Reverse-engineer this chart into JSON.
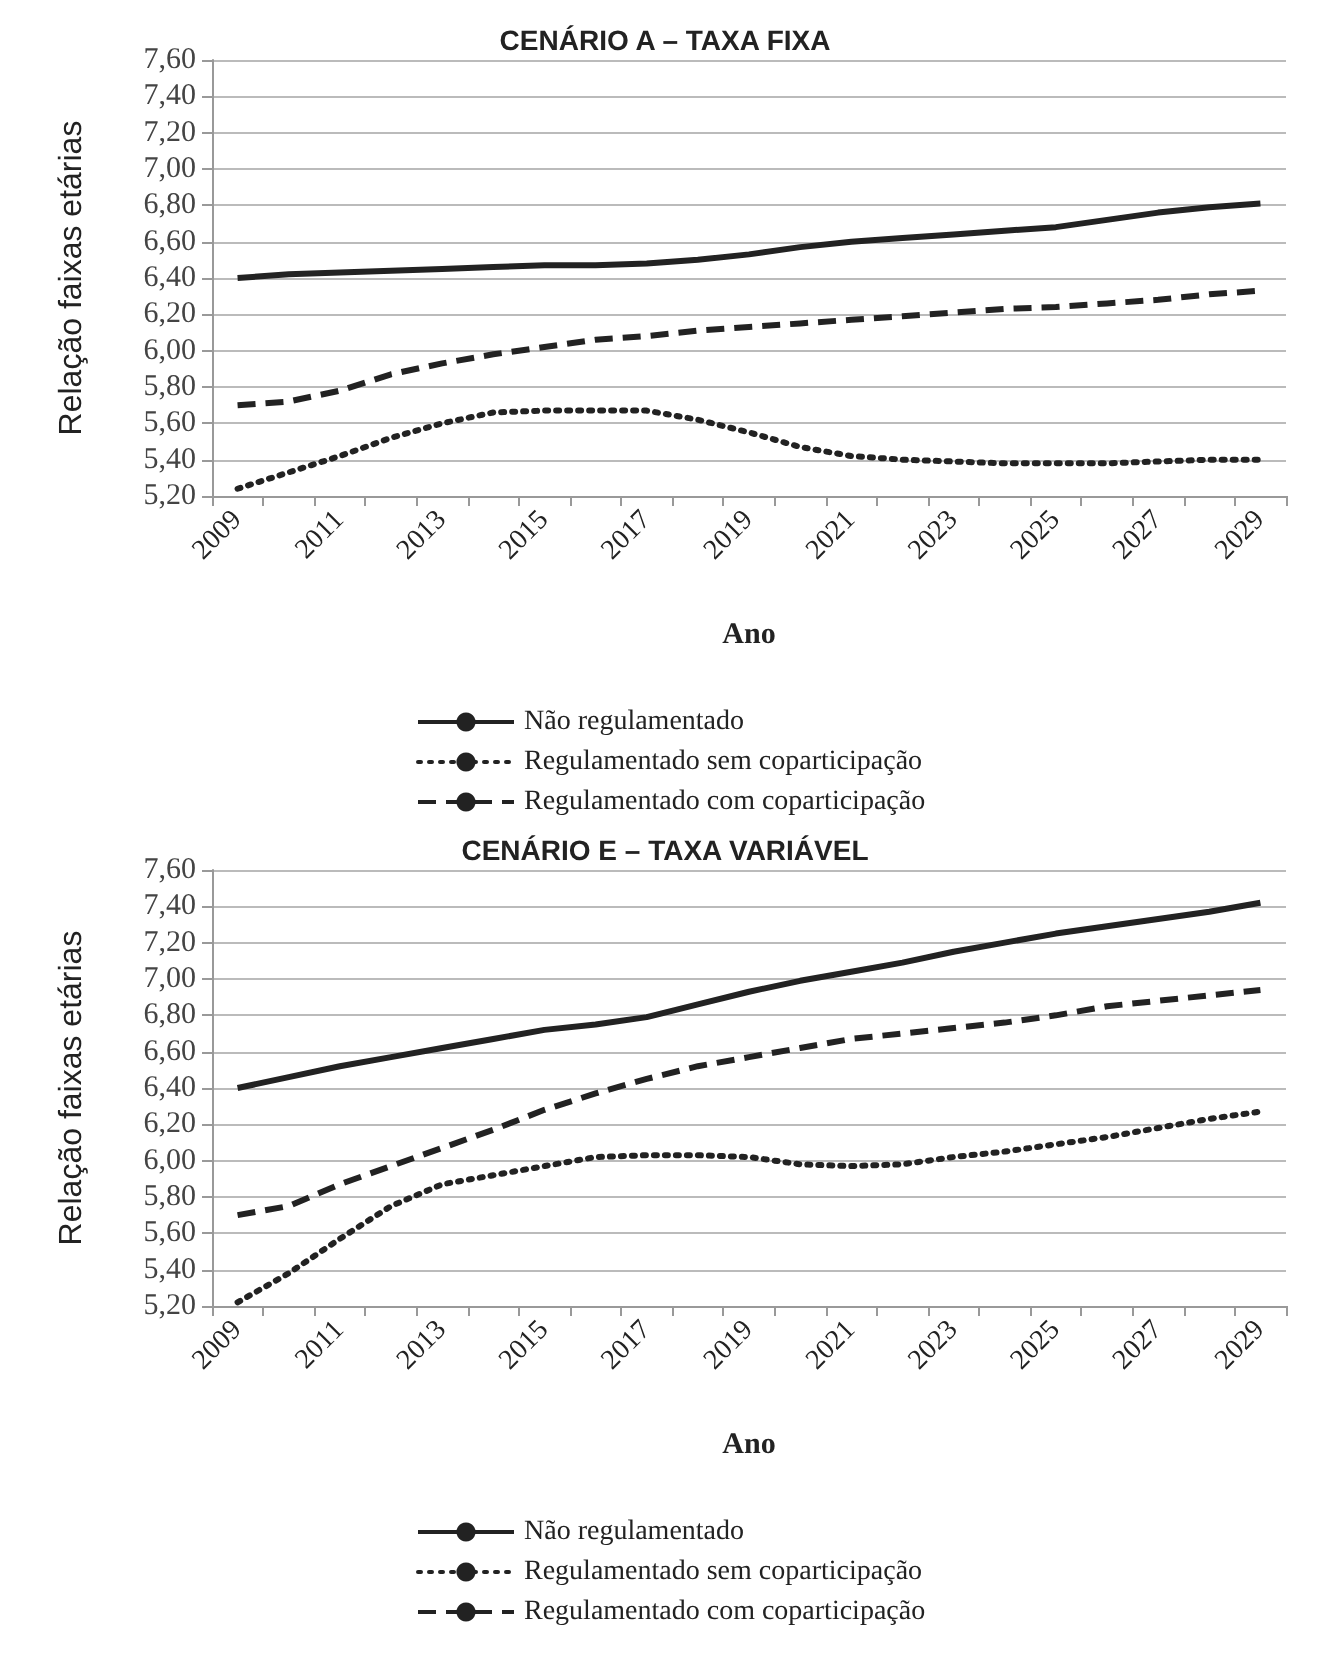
{
  "chart_data": [
    {
      "type": "line",
      "title": "CENÁRIO A – TAXA FIXA",
      "xlabel": "Ano",
      "ylabel": "Relação faixas etárias",
      "categories": [
        "2009",
        null,
        "2011",
        null,
        "2013",
        null,
        "2015",
        null,
        "2017",
        null,
        "2019",
        null,
        "2021",
        null,
        "2023",
        null,
        "2025",
        null,
        "2027",
        null,
        "2029"
      ],
      "series": [
        {
          "name": "Não regulamentado",
          "color": "#222222",
          "line_style": "solid",
          "values": [
            6.4,
            6.42,
            6.43,
            6.44,
            6.45,
            6.46,
            6.47,
            6.47,
            6.48,
            6.5,
            6.53,
            6.57,
            6.6,
            6.62,
            6.64,
            6.66,
            6.68,
            6.72,
            6.76,
            6.79,
            6.81
          ]
        },
        {
          "name": "Regulamentado sem coparticipação",
          "color": "#222222",
          "line_style": "dotted",
          "values": [
            5.24,
            5.33,
            5.42,
            5.52,
            5.6,
            5.66,
            5.67,
            5.67,
            5.67,
            5.62,
            5.55,
            5.47,
            5.42,
            5.4,
            5.39,
            5.38,
            5.38,
            5.38,
            5.39,
            5.4,
            5.4
          ]
        },
        {
          "name": "Regulamentado com coparticipação",
          "color": "#222222",
          "line_style": "dashed",
          "values": [
            5.7,
            5.72,
            5.78,
            5.87,
            5.93,
            5.98,
            6.02,
            6.06,
            6.08,
            6.11,
            6.13,
            6.15,
            6.17,
            6.19,
            6.21,
            6.23,
            6.24,
            6.26,
            6.28,
            6.31,
            6.33
          ]
        }
      ],
      "ylim": [
        5.2,
        7.6
      ],
      "yticks": [
        {
          "value": 5.2,
          "label": "5,20"
        },
        {
          "value": 5.4,
          "label": "5,40"
        },
        {
          "value": 5.6,
          "label": "5,60"
        },
        {
          "value": 5.8,
          "label": "5,80"
        },
        {
          "value": 6.0,
          "label": "6,00"
        },
        {
          "value": 6.2,
          "label": "6,20"
        },
        {
          "value": 6.4,
          "label": "6,40"
        },
        {
          "value": 6.6,
          "label": "6,60"
        },
        {
          "value": 6.8,
          "label": "6,80"
        },
        {
          "value": 7.0,
          "label": "7,00"
        },
        {
          "value": 7.2,
          "label": "7,20"
        },
        {
          "value": 7.4,
          "label": "7,40"
        },
        {
          "value": 7.6,
          "label": "7,60"
        }
      ],
      "grid": "y",
      "legend": "bottom"
    },
    {
      "type": "line",
      "title": "CENÁRIO E – TAXA VARIÁVEL",
      "xlabel": "Ano",
      "ylabel": "Relação faixas etárias",
      "categories": [
        "2009",
        null,
        "2011",
        null,
        "2013",
        null,
        "2015",
        null,
        "2017",
        null,
        "2019",
        null,
        "2021",
        null,
        "2023",
        null,
        "2025",
        null,
        "2027",
        null,
        "2029"
      ],
      "series": [
        {
          "name": "Não regulamentado",
          "color": "#222222",
          "line_style": "solid",
          "values": [
            6.4,
            6.46,
            6.52,
            6.57,
            6.62,
            6.67,
            6.72,
            6.75,
            6.79,
            6.86,
            6.93,
            6.99,
            7.04,
            7.09,
            7.15,
            7.2,
            7.25,
            7.29,
            7.33,
            7.37,
            7.42
          ]
        },
        {
          "name": "Regulamentado sem coparticipação",
          "color": "#222222",
          "line_style": "dotted",
          "values": [
            5.22,
            5.38,
            5.57,
            5.75,
            5.87,
            5.92,
            5.97,
            6.02,
            6.03,
            6.03,
            6.02,
            5.98,
            5.97,
            5.98,
            6.02,
            6.05,
            6.09,
            6.13,
            6.18,
            6.23,
            6.27
          ]
        },
        {
          "name": "Regulamentado com coparticipação",
          "color": "#222222",
          "line_style": "dashed",
          "values": [
            5.7,
            5.75,
            5.87,
            5.97,
            6.07,
            6.17,
            6.28,
            6.37,
            6.45,
            6.52,
            6.57,
            6.62,
            6.67,
            6.7,
            6.73,
            6.76,
            6.8,
            6.85,
            6.88,
            6.91,
            6.94
          ]
        }
      ],
      "ylim": [
        5.2,
        7.6
      ],
      "yticks": [
        {
          "value": 5.2,
          "label": "5,20"
        },
        {
          "value": 5.4,
          "label": "5,40"
        },
        {
          "value": 5.6,
          "label": "5,60"
        },
        {
          "value": 5.8,
          "label": "5,80"
        },
        {
          "value": 6.0,
          "label": "6,00"
        },
        {
          "value": 6.2,
          "label": "6,20"
        },
        {
          "value": 6.4,
          "label": "6,40"
        },
        {
          "value": 6.6,
          "label": "6,60"
        },
        {
          "value": 6.8,
          "label": "6,80"
        },
        {
          "value": 7.0,
          "label": "7,00"
        },
        {
          "value": 7.2,
          "label": "7,20"
        },
        {
          "value": 7.4,
          "label": "7,40"
        },
        {
          "value": 7.6,
          "label": "7,60"
        }
      ],
      "grid": "y",
      "legend": "bottom"
    }
  ]
}
